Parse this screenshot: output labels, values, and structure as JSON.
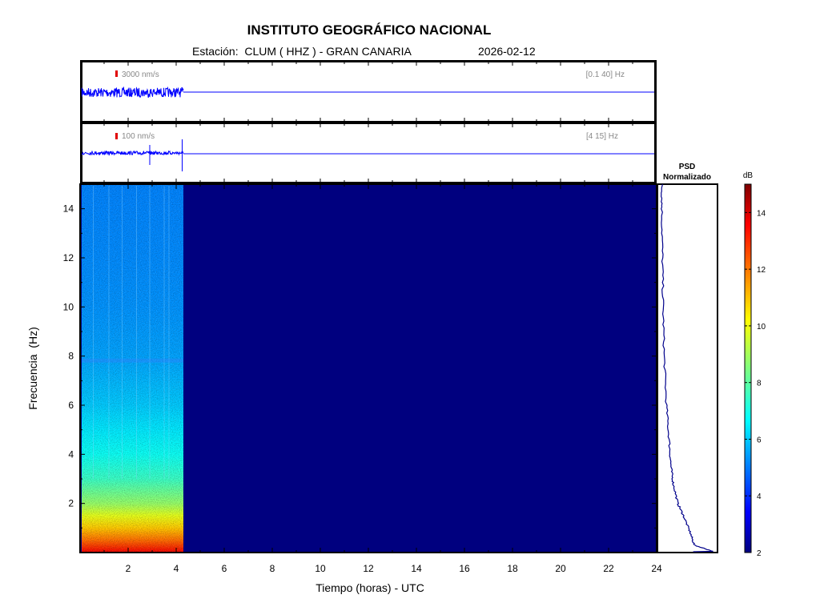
{
  "title": "INSTITUTO GEOGRÁFICO NACIONAL",
  "station_prefix": "Estación:",
  "station": "CLUM ( HHZ ) - GRAN CANARIA",
  "date": "2026-02-12",
  "colors": {
    "trace": "#0000ff",
    "scale_marker": "#e00000",
    "background_dark": "#00007f"
  },
  "chart_data": [
    {
      "type": "line",
      "panel": "seismogram-broadband",
      "amplitude_scale_label": "3000 nm/s",
      "band_label": "[0.1 40] Hz",
      "data_end_hour": 4.3,
      "xlim": [
        0,
        24
      ]
    },
    {
      "type": "line",
      "panel": "seismogram-filtered",
      "amplitude_scale_label": "100 nm/s",
      "band_label": "[4 15] Hz",
      "data_end_hour": 4.3,
      "spikes_hours": [
        2.9,
        4.25
      ],
      "xlim": [
        0,
        24
      ]
    },
    {
      "type": "heatmap",
      "panel": "spectrogram",
      "xlabel": "Tiempo (horas) - UTC",
      "ylabel": "Frecuencia  (Hz)",
      "xlim": [
        0,
        24
      ],
      "ylim": [
        0,
        15
      ],
      "xticks": [
        2,
        4,
        6,
        8,
        10,
        12,
        14,
        16,
        18,
        20,
        22,
        24
      ],
      "yticks": [
        2,
        4,
        6,
        8,
        10,
        12,
        14
      ],
      "data_end_hour": 4.3,
      "level_by_frequency": [
        {
          "hz": 0.0,
          "db": 13.5
        },
        {
          "hz": 0.5,
          "db": 12.0
        },
        {
          "hz": 1.0,
          "db": 10.8
        },
        {
          "hz": 1.5,
          "db": 9.8
        },
        {
          "hz": 2.0,
          "db": 8.8
        },
        {
          "hz": 3.0,
          "db": 7.6
        },
        {
          "hz": 4.0,
          "db": 7.0
        },
        {
          "hz": 5.0,
          "db": 6.6
        },
        {
          "hz": 6.0,
          "db": 6.2
        },
        {
          "hz": 8.0,
          "db": 5.7
        },
        {
          "hz": 10.0,
          "db": 5.5
        },
        {
          "hz": 12.0,
          "db": 5.4
        },
        {
          "hz": 15.0,
          "db": 5.3
        }
      ]
    },
    {
      "type": "line",
      "panel": "psd",
      "title_line1": "PSD",
      "title_line2": "Normalizado",
      "points": [
        {
          "hz": 0.05,
          "value": 0.95
        },
        {
          "hz": 0.3,
          "value": 0.62
        },
        {
          "hz": 0.8,
          "value": 0.55
        },
        {
          "hz": 1.5,
          "value": 0.43
        },
        {
          "hz": 2.0,
          "value": 0.33
        },
        {
          "hz": 2.8,
          "value": 0.25
        },
        {
          "hz": 3.5,
          "value": 0.21
        },
        {
          "hz": 4.5,
          "value": 0.18
        },
        {
          "hz": 6.0,
          "value": 0.13
        },
        {
          "hz": 8.0,
          "value": 0.09
        },
        {
          "hz": 10.0,
          "value": 0.07
        },
        {
          "hz": 12.0,
          "value": 0.06
        },
        {
          "hz": 14.0,
          "value": 0.05
        },
        {
          "hz": 15.0,
          "value": 0.05
        }
      ]
    },
    {
      "type": "colorbar",
      "panel": "colorbar",
      "label": "dB",
      "range": [
        2,
        15
      ],
      "ticks": [
        2,
        4,
        6,
        8,
        10,
        12,
        14
      ],
      "colormap": "jet"
    }
  ]
}
